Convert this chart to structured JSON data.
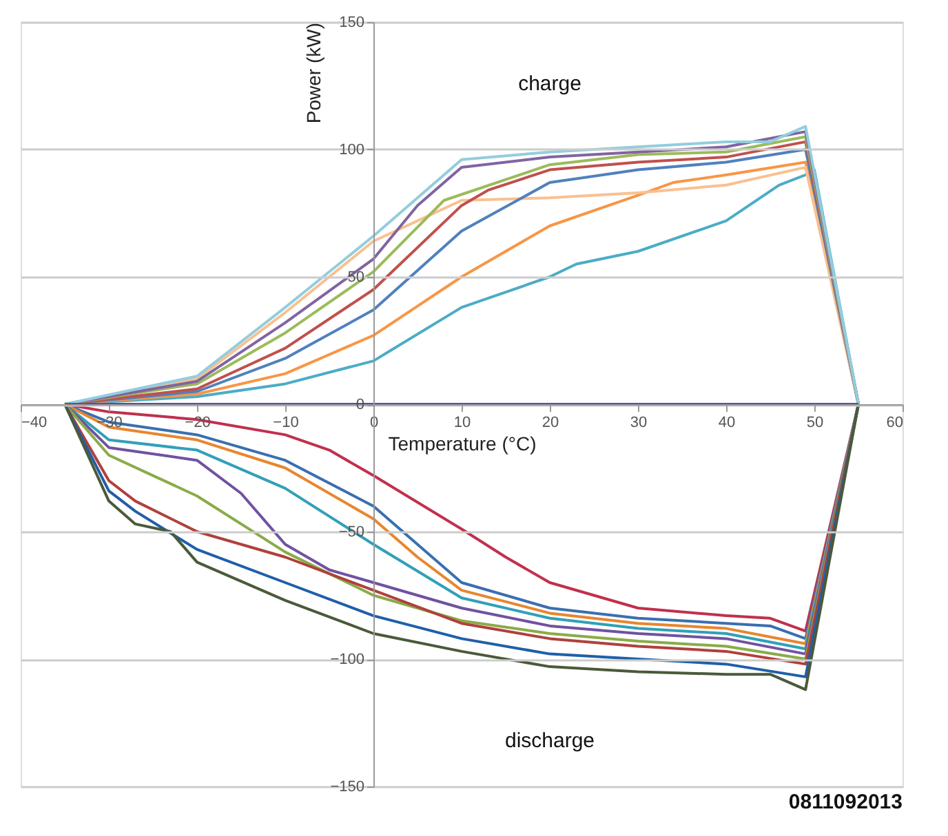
{
  "chart_data": {
    "type": "line",
    "xlabel": "Temperature (°C)",
    "ylabel": "Power (kW)",
    "xlim": [
      -40,
      60
    ],
    "xticks": [
      -40,
      -30,
      -20,
      -10,
      0,
      10,
      20,
      30,
      40,
      50,
      60
    ],
    "ylim": [
      -150,
      150
    ],
    "yticks": [
      -150,
      -100,
      -50,
      0,
      50,
      100,
      150
    ],
    "grid": "y",
    "annotations": [
      "charge",
      "discharge",
      "0811092013"
    ],
    "series": [
      {
        "color": "#4bacc6",
        "x": [
          -35,
          -20,
          -10,
          0,
          10,
          20,
          23,
          30,
          40,
          46,
          49,
          50,
          55
        ],
        "values": [
          0,
          3,
          8,
          17,
          38,
          50,
          55,
          60,
          72,
          86,
          90,
          92,
          0
        ]
      },
      {
        "color": "#f79646",
        "x": [
          -35,
          -20,
          -10,
          0,
          10,
          20,
          30,
          34,
          40,
          49,
          55
        ],
        "values": [
          0,
          4,
          12,
          27,
          50,
          70,
          82,
          87,
          90,
          95,
          0
        ]
      },
      {
        "color": "#fac090",
        "x": [
          -35,
          -20,
          -10,
          0,
          5,
          10,
          20,
          30,
          40,
          49,
          55
        ],
        "values": [
          0,
          10,
          36,
          64,
          72,
          80,
          81,
          83,
          86,
          93,
          0
        ]
      },
      {
        "color": "#4f81bd",
        "x": [
          -35,
          -20,
          -10,
          0,
          10,
          20,
          30,
          40,
          49,
          55
        ],
        "values": [
          0,
          5,
          18,
          37,
          68,
          87,
          92,
          95,
          100,
          0
        ]
      },
      {
        "color": "#c0504d",
        "x": [
          -35,
          -20,
          -10,
          0,
          10,
          13,
          20,
          30,
          40,
          49,
          55
        ],
        "values": [
          0,
          6,
          22,
          45,
          78,
          84,
          92,
          95,
          97,
          103,
          0
        ]
      },
      {
        "color": "#9bbb59",
        "x": [
          -35,
          -20,
          -10,
          0,
          8,
          20,
          30,
          40,
          49,
          55
        ],
        "values": [
          0,
          8,
          28,
          52,
          80,
          94,
          98,
          99,
          105,
          0
        ]
      },
      {
        "color": "#8064a2",
        "x": [
          -35,
          -20,
          -10,
          0,
          5,
          10,
          20,
          30,
          40,
          49,
          55
        ],
        "values": [
          0,
          9,
          32,
          57,
          78,
          93,
          97,
          99,
          101,
          107,
          0
        ]
      },
      {
        "color": "#93cddd",
        "x": [
          -35,
          -20,
          -10,
          0,
          10,
          20,
          30,
          40,
          45,
          49,
          55
        ],
        "values": [
          0,
          11,
          38,
          66,
          96,
          99,
          101,
          103,
          103,
          109,
          0
        ]
      },
      {
        "color": "#5b4fa8",
        "x": [
          -35,
          55
        ],
        "values": [
          0,
          0
        ]
      },
      {
        "color": "#c0304d",
        "x": [
          -35,
          -30,
          -20,
          -10,
          -5,
          0,
          10,
          15,
          20,
          30,
          40,
          45,
          49,
          55
        ],
        "values": [
          0,
          -3,
          -6,
          -12,
          -18,
          -28,
          -49,
          -60,
          -70,
          -80,
          -83,
          -84,
          -89,
          0
        ]
      },
      {
        "color": "#3a6fb0",
        "x": [
          -35,
          -30,
          -20,
          -10,
          0,
          5,
          10,
          20,
          30,
          40,
          45,
          49,
          55
        ],
        "values": [
          0,
          -7,
          -12,
          -22,
          -40,
          -55,
          -70,
          -80,
          -84,
          -86,
          -87,
          -92,
          0
        ]
      },
      {
        "color": "#e8862e",
        "x": [
          -35,
          -30,
          -20,
          -10,
          0,
          5,
          10,
          20,
          30,
          40,
          49,
          55
        ],
        "values": [
          0,
          -9,
          -14,
          -25,
          -45,
          -60,
          -73,
          -82,
          -86,
          -88,
          -94,
          0
        ]
      },
      {
        "color": "#31a0b8",
        "x": [
          -35,
          -30,
          -20,
          -10,
          0,
          10,
          20,
          30,
          40,
          49,
          55
        ],
        "values": [
          0,
          -14,
          -18,
          -33,
          -55,
          -76,
          -84,
          -88,
          -90,
          -96,
          0
        ]
      },
      {
        "color": "#7052a0",
        "x": [
          -35,
          -30,
          -20,
          -15,
          -10,
          -5,
          0,
          10,
          20,
          30,
          40,
          49,
          55
        ],
        "values": [
          0,
          -17,
          -22,
          -35,
          -55,
          -65,
          -70,
          -80,
          -87,
          -90,
          -92,
          -98,
          0
        ]
      },
      {
        "color": "#8aab48",
        "x": [
          -35,
          -30,
          -25,
          -20,
          -10,
          0,
          10,
          20,
          30,
          40,
          49,
          55
        ],
        "values": [
          0,
          -20,
          -28,
          -36,
          -58,
          -75,
          -85,
          -90,
          -93,
          -95,
          -100,
          0
        ]
      },
      {
        "color": "#b0403d",
        "x": [
          -35,
          -30,
          -27,
          -20,
          -10,
          0,
          10,
          20,
          30,
          40,
          49,
          55
        ],
        "values": [
          0,
          -30,
          -38,
          -50,
          -60,
          -73,
          -86,
          -92,
          -95,
          -97,
          -102,
          0
        ]
      },
      {
        "color": "#1f5fa8",
        "x": [
          -35,
          -30,
          -27,
          -20,
          -10,
          0,
          10,
          20,
          30,
          40,
          49,
          55
        ],
        "values": [
          0,
          -34,
          -42,
          -57,
          -70,
          -83,
          -92,
          -98,
          -100,
          -102,
          -107,
          0
        ]
      },
      {
        "color": "#4a5a3a",
        "x": [
          -35,
          -30,
          -27,
          -23,
          -20,
          -10,
          0,
          10,
          20,
          30,
          40,
          45,
          49,
          55
        ],
        "values": [
          0,
          -38,
          -47,
          -50,
          -62,
          -77,
          -90,
          -97,
          -103,
          -105,
          -106,
          -106,
          -112,
          0
        ]
      }
    ]
  }
}
